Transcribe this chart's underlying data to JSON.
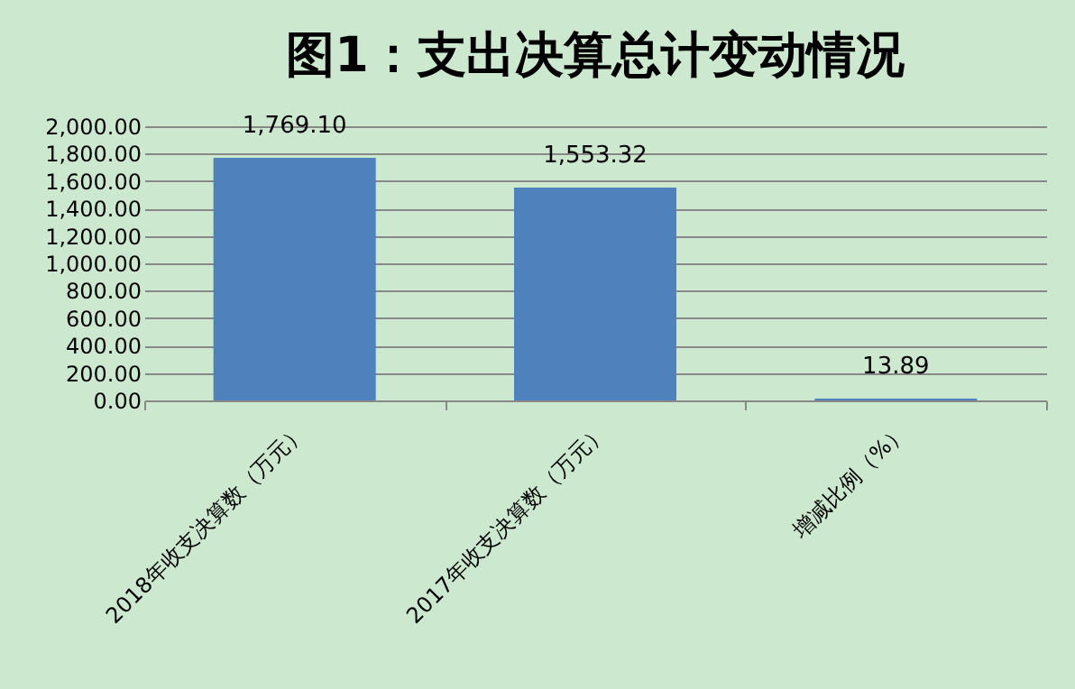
{
  "chart_data": {
    "type": "bar",
    "title": "图1：支出决算总计变动情况",
    "categories": [
      "2018年收支决算数（万元）",
      "2017年收支决算数（万元）",
      "增减比例（%）"
    ],
    "values": [
      1769.1,
      1553.32,
      13.89
    ],
    "value_labels": [
      "1,769.10",
      "1,553.32",
      "13.89"
    ],
    "color": "#4f81bd",
    "ylim": [
      0,
      2000
    ],
    "yticks": [
      {
        "value": 0,
        "label": "0.00"
      },
      {
        "value": 200,
        "label": "200.00"
      },
      {
        "value": 400,
        "label": "400.00"
      },
      {
        "value": 600,
        "label": "600.00"
      },
      {
        "value": 800,
        "label": "800.00"
      },
      {
        "value": 1000,
        "label": "1,000.00"
      },
      {
        "value": 1200,
        "label": "1,200.00"
      },
      {
        "value": 1400,
        "label": "1,400.00"
      },
      {
        "value": 1600,
        "label": "1,600.00"
      },
      {
        "value": 1800,
        "label": "1,800.00"
      },
      {
        "value": 2000,
        "label": "2,000.00"
      }
    ],
    "grid": "y"
  }
}
